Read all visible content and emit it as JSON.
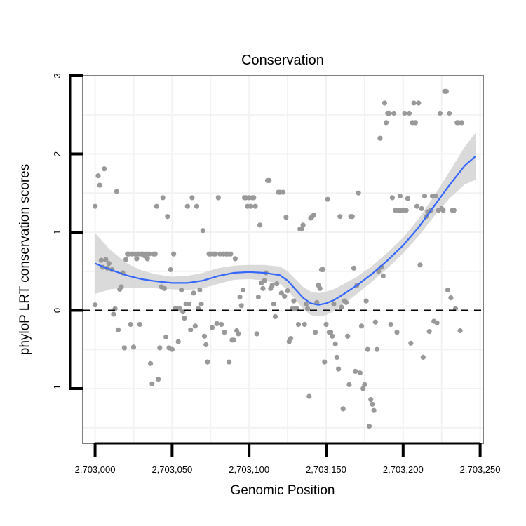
{
  "chart_data": {
    "type": "scatter",
    "title": "Conservation",
    "xlabel": "Genomic Position",
    "ylabel": "phyloP LRT conservation scores",
    "xlim": [
      2702992,
      2703252
    ],
    "ylim": [
      -1.7,
      3.0
    ],
    "x_ticks": [
      2703000,
      2703050,
      2703100,
      2703150,
      2703200,
      2703250
    ],
    "x_tick_labels": [
      "2,703,000",
      "2,703,050",
      "2,703,100",
      "2,703,150",
      "2,703,200",
      "2,703,250"
    ],
    "y_ticks": [
      -1,
      0,
      1,
      2,
      3
    ],
    "y_tick_labels": [
      "-1",
      "0",
      "1",
      "2",
      "3"
    ],
    "reference_line": {
      "y": 0,
      "style": "dashed"
    },
    "colors": {
      "points": "#999999",
      "smooth": "#3366ff",
      "ribbon": "#d3d3d3",
      "border": "#808080",
      "grid": "#f2f2f2"
    },
    "points": [
      [
        2703000,
        0.07
      ],
      [
        2703000,
        1.33
      ],
      [
        2703002,
        1.72
      ],
      [
        2703003,
        1.6
      ],
      [
        2703004,
        0.64
      ],
      [
        2703005,
        0.55
      ],
      [
        2703006,
        1.81
      ],
      [
        2703007,
        0.65
      ],
      [
        2703008,
        0.54
      ],
      [
        2703009,
        0.6
      ],
      [
        2703011,
        0.52
      ],
      [
        2703012,
        -0.05
      ],
      [
        2703013,
        0.02
      ],
      [
        2703014,
        1.52
      ],
      [
        2703015,
        -0.25
      ],
      [
        2703016,
        0.27
      ],
      [
        2703017,
        0.3
      ],
      [
        2703018,
        0.48
      ],
      [
        2703019,
        -0.48
      ],
      [
        2703020,
        0.65
      ],
      [
        2703021,
        0.72
      ],
      [
        2703022,
        0.72
      ],
      [
        2703023,
        -0.18
      ],
      [
        2703024,
        0.72
      ],
      [
        2703025,
        -0.47
      ],
      [
        2703026,
        0.72
      ],
      [
        2703027,
        0.66
      ],
      [
        2703028,
        0.72
      ],
      [
        2703029,
        -0.18
      ],
      [
        2703030,
        0.72
      ],
      [
        2703031,
        0.72
      ],
      [
        2703032,
        0.7
      ],
      [
        2703033,
        0.72
      ],
      [
        2703034,
        0.66
      ],
      [
        2703035,
        0.72
      ],
      [
        2703036,
        -0.68
      ],
      [
        2703037,
        -0.94
      ],
      [
        2703038,
        0.72
      ],
      [
        2703039,
        0.72
      ],
      [
        2703040,
        1.33
      ],
      [
        2703041,
        -0.88
      ],
      [
        2703042,
        -0.48
      ],
      [
        2703043,
        0.3
      ],
      [
        2703044,
        1.44
      ],
      [
        2703045,
        0.28
      ],
      [
        2703046,
        -0.34
      ],
      [
        2703047,
        1.2
      ],
      [
        2703048,
        -0.48
      ],
      [
        2703049,
        0.52
      ],
      [
        2703050,
        -0.5
      ],
      [
        2703051,
        0.72
      ],
      [
        2703052,
        0.02
      ],
      [
        2703053,
        0.02
      ],
      [
        2703054,
        -0.4
      ],
      [
        2703055,
        0.02
      ],
      [
        2703056,
        0.26
      ],
      [
        2703057,
        -0.02
      ],
      [
        2703058,
        -0.1
      ],
      [
        2703059,
        0.08
      ],
      [
        2703060,
        1.33
      ],
      [
        2703061,
        0.08
      ],
      [
        2703062,
        -0.25
      ],
      [
        2703063,
        1.44
      ],
      [
        2703064,
        0.22
      ],
      [
        2703065,
        -0.2
      ],
      [
        2703066,
        1.33
      ],
      [
        2703067,
        0.02
      ],
      [
        2703068,
        0.26
      ],
      [
        2703069,
        0.08
      ],
      [
        2703070,
        1.02
      ],
      [
        2703071,
        -0.33
      ],
      [
        2703072,
        -0.44
      ],
      [
        2703073,
        -0.66
      ],
      [
        2703074,
        0.72
      ],
      [
        2703075,
        0.72
      ],
      [
        2703076,
        -0.22
      ],
      [
        2703077,
        0.72
      ],
      [
        2703078,
        0.72
      ],
      [
        2703079,
        -0.17
      ],
      [
        2703080,
        1.44
      ],
      [
        2703081,
        0.72
      ],
      [
        2703082,
        -0.18
      ],
      [
        2703083,
        0.72
      ],
      [
        2703084,
        -0.28
      ],
      [
        2703085,
        0.72
      ],
      [
        2703086,
        0.72
      ],
      [
        2703087,
        -0.66
      ],
      [
        2703088,
        0.72
      ],
      [
        2703089,
        -0.38
      ],
      [
        2703090,
        -0.38
      ],
      [
        2703091,
        0.66
      ],
      [
        2703092,
        -0.26
      ],
      [
        2703093,
        -0.3
      ],
      [
        2703094,
        0.17
      ],
      [
        2703095,
        0.06
      ],
      [
        2703096,
        0.26
      ],
      [
        2703097,
        1.44
      ],
      [
        2703098,
        1.44
      ],
      [
        2703099,
        1.33
      ],
      [
        2703100,
        1.44
      ],
      [
        2703101,
        1.33
      ],
      [
        2703102,
        1.44
      ],
      [
        2703103,
        1.44
      ],
      [
        2703104,
        1.33
      ],
      [
        2703105,
        -0.3
      ],
      [
        2703106,
        0.17
      ],
      [
        2703107,
        1.09
      ],
      [
        2703108,
        0.35
      ],
      [
        2703109,
        0.28
      ],
      [
        2703110,
        0.38
      ],
      [
        2703111,
        0.48
      ],
      [
        2703112,
        1.66
      ],
      [
        2703113,
        1.66
      ],
      [
        2703114,
        0.28
      ],
      [
        2703115,
        0.32
      ],
      [
        2703116,
        0.08
      ],
      [
        2703117,
        -0.08
      ],
      [
        2703118,
        0.34
      ],
      [
        2703119,
        1.51
      ],
      [
        2703120,
        1.51
      ],
      [
        2703121,
        0.22
      ],
      [
        2703122,
        1.51
      ],
      [
        2703123,
        0.18
      ],
      [
        2703124,
        1.19
      ],
      [
        2703125,
        0.25
      ],
      [
        2703126,
        -0.4
      ],
      [
        2703127,
        -0.36
      ],
      [
        2703128,
        0.02
      ],
      [
        2703129,
        0.12
      ],
      [
        2703130,
        0.02
      ],
      [
        2703131,
        0.02
      ],
      [
        2703132,
        -0.18
      ],
      [
        2703133,
        1.04
      ],
      [
        2703134,
        1.04
      ],
      [
        2703135,
        1.09
      ],
      [
        2703136,
        -0.18
      ],
      [
        2703137,
        0.08
      ],
      [
        2703138,
        0.02
      ],
      [
        2703139,
        -1.1
      ],
      [
        2703140,
        1.18
      ],
      [
        2703141,
        1.2
      ],
      [
        2703142,
        1.22
      ],
      [
        2703143,
        -0.28
      ],
      [
        2703144,
        0.1
      ],
      [
        2703145,
        0.32
      ],
      [
        2703146,
        0.28
      ],
      [
        2703147,
        0.52
      ],
      [
        2703148,
        0.52
      ],
      [
        2703149,
        -0.66
      ],
      [
        2703150,
        -0.18
      ],
      [
        2703151,
        1.42
      ],
      [
        2703152,
        -0.28
      ],
      [
        2703153,
        -0.28
      ],
      [
        2703154,
        -0.33
      ],
      [
        2703155,
        0.08
      ],
      [
        2703156,
        -0.43
      ],
      [
        2703157,
        -0.6
      ],
      [
        2703158,
        -0.75
      ],
      [
        2703159,
        1.2
      ],
      [
        2703160,
        0.04
      ],
      [
        2703161,
        -1.26
      ],
      [
        2703162,
        0.12
      ],
      [
        2703163,
        0.1
      ],
      [
        2703164,
        -0.33
      ],
      [
        2703165,
        -0.95
      ],
      [
        2703166,
        1.2
      ],
      [
        2703167,
        1.2
      ],
      [
        2703168,
        0.54
      ],
      [
        2703169,
        -0.78
      ],
      [
        2703170,
        0.32
      ],
      [
        2703171,
        1.5
      ],
      [
        2703172,
        -0.8
      ],
      [
        2703173,
        -0.2
      ],
      [
        2703174,
        -1.0
      ],
      [
        2703175,
        -0.95
      ],
      [
        2703176,
        0.12
      ],
      [
        2703177,
        -0.5
      ],
      [
        2703178,
        -1.48
      ],
      [
        2703179,
        -1.14
      ],
      [
        2703180,
        -1.2
      ],
      [
        2703181,
        -1.28
      ],
      [
        2703182,
        -0.15
      ],
      [
        2703183,
        -0.5
      ],
      [
        2703184,
        0.5
      ],
      [
        2703185,
        2.2
      ],
      [
        2703186,
        0.55
      ],
      [
        2703187,
        0.44
      ],
      [
        2703188,
        2.65
      ],
      [
        2703189,
        2.4
      ],
      [
        2703190,
        2.52
      ],
      [
        2703191,
        2.52
      ],
      [
        2703192,
        -0.18
      ],
      [
        2703193,
        1.44
      ],
      [
        2703194,
        2.52
      ],
      [
        2703195,
        1.28
      ],
      [
        2703196,
        -0.28
      ],
      [
        2703197,
        1.28
      ],
      [
        2703198,
        1.46
      ],
      [
        2703199,
        1.28
      ],
      [
        2703200,
        1.28
      ],
      [
        2703201,
        2.52
      ],
      [
        2703202,
        1.28
      ],
      [
        2703203,
        1.43
      ],
      [
        2703204,
        2.52
      ],
      [
        2703205,
        -0.42
      ],
      [
        2703206,
        2.4
      ],
      [
        2703207,
        2.65
      ],
      [
        2703208,
        2.4
      ],
      [
        2703209,
        1.33
      ],
      [
        2703210,
        2.65
      ],
      [
        2703211,
        0.58
      ],
      [
        2703212,
        1.3
      ],
      [
        2703213,
        -0.6
      ],
      [
        2703214,
        1.46
      ],
      [
        2703215,
        1.2
      ],
      [
        2703216,
        1.26
      ],
      [
        2703217,
        -0.27
      ],
      [
        2703218,
        1.28
      ],
      [
        2703219,
        1.46
      ],
      [
        2703220,
        -0.14
      ],
      [
        2703221,
        1.46
      ],
      [
        2703222,
        -0.16
      ],
      [
        2703223,
        1.28
      ],
      [
        2703224,
        2.52
      ],
      [
        2703225,
        1.3
      ],
      [
        2703226,
        1.28
      ],
      [
        2703227,
        2.8
      ],
      [
        2703228,
        2.8
      ],
      [
        2703229,
        0.26
      ],
      [
        2703230,
        2.52
      ],
      [
        2703231,
        0.16
      ],
      [
        2703232,
        1.28
      ],
      [
        2703233,
        1.28
      ],
      [
        2703234,
        0.02
      ],
      [
        2703235,
        2.4
      ],
      [
        2703236,
        2.4
      ],
      [
        2703237,
        -0.26
      ],
      [
        2703238,
        2.4
      ]
    ],
    "smooth_curve": [
      [
        2703000,
        0.6
      ],
      [
        2703010,
        0.52
      ],
      [
        2703020,
        0.45
      ],
      [
        2703030,
        0.4
      ],
      [
        2703040,
        0.37
      ],
      [
        2703050,
        0.35
      ],
      [
        2703060,
        0.35
      ],
      [
        2703070,
        0.38
      ],
      [
        2703080,
        0.44
      ],
      [
        2703090,
        0.48
      ],
      [
        2703100,
        0.49
      ],
      [
        2703110,
        0.48
      ],
      [
        2703120,
        0.45
      ],
      [
        2703125,
        0.38
      ],
      [
        2703130,
        0.27
      ],
      [
        2703135,
        0.16
      ],
      [
        2703140,
        0.09
      ],
      [
        2703145,
        0.07
      ],
      [
        2703150,
        0.09
      ],
      [
        2703155,
        0.13
      ],
      [
        2703160,
        0.19
      ],
      [
        2703170,
        0.32
      ],
      [
        2703180,
        0.47
      ],
      [
        2703190,
        0.64
      ],
      [
        2703200,
        0.83
      ],
      [
        2703210,
        1.06
      ],
      [
        2703220,
        1.33
      ],
      [
        2703230,
        1.6
      ],
      [
        2703240,
        1.85
      ],
      [
        2703247,
        1.97
      ]
    ],
    "ribbon_half_width": [
      0.39,
      0.25,
      0.16,
      0.11,
      0.09,
      0.08,
      0.09,
      0.1,
      0.1,
      0.09,
      0.09,
      0.1,
      0.11,
      0.12,
      0.13,
      0.14,
      0.15,
      0.15,
      0.15,
      0.14,
      0.13,
      0.11,
      0.1,
      0.1,
      0.1,
      0.11,
      0.13,
      0.17,
      0.24,
      0.3
    ]
  }
}
